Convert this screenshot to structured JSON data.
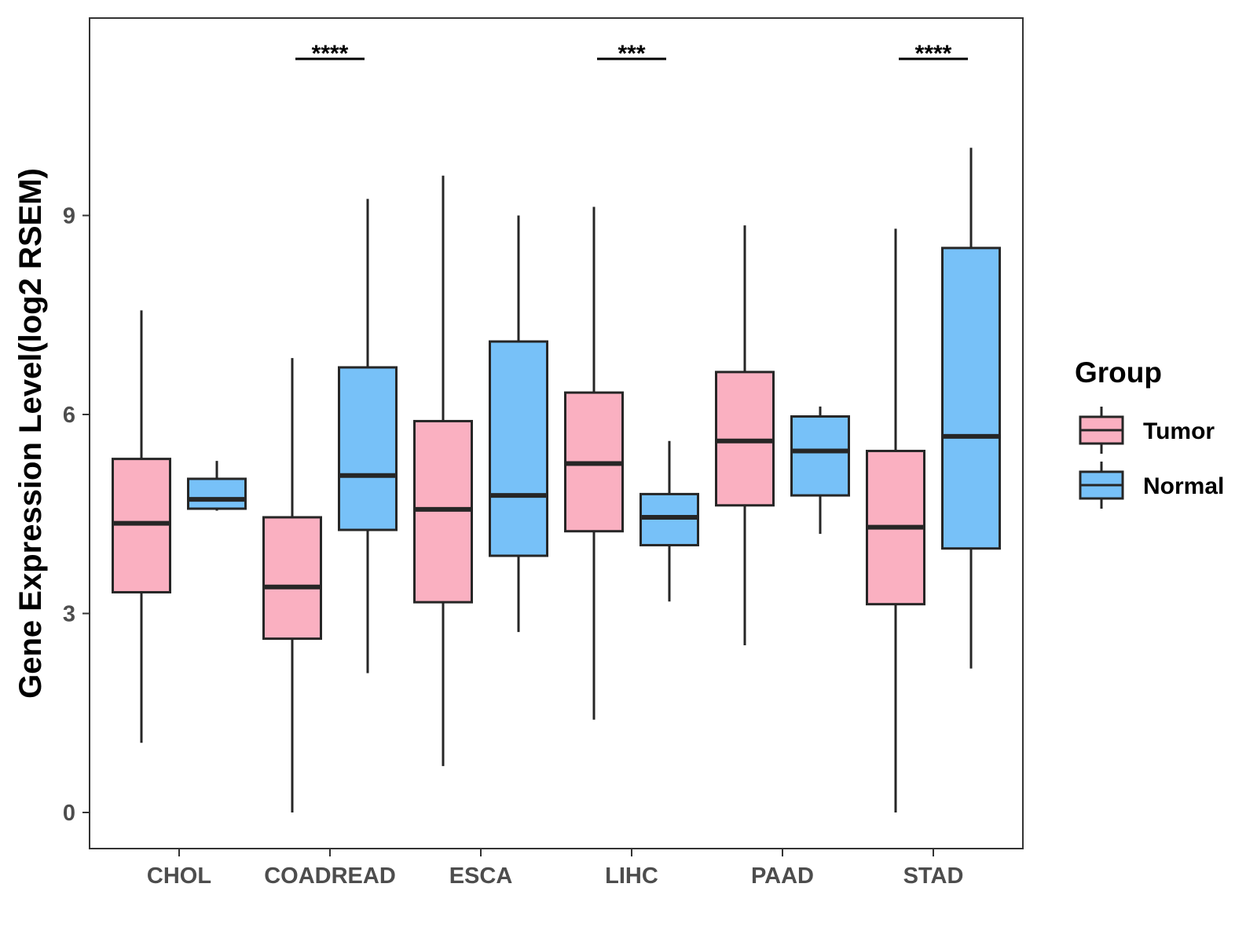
{
  "chart_data": {
    "type": "box",
    "title": "",
    "xlabel": "",
    "ylabel": "Gene Expression Level(log2 RSEM)",
    "ylim": [
      -0.55,
      12
    ],
    "yticks": [
      0,
      3,
      6,
      9
    ],
    "categories": [
      "CHOL",
      "COADREAD",
      "ESCA",
      "LIHC",
      "PAAD",
      "STAD"
    ],
    "legend_title": "Group",
    "legend_position": "right",
    "series": [
      {
        "name": "Tumor",
        "color": "#FAB0C1",
        "boxes": [
          {
            "min": 1.05,
            "q1": 3.32,
            "median": 4.36,
            "q3": 5.33,
            "max": 7.57
          },
          {
            "min": 0.0,
            "q1": 2.62,
            "median": 3.4,
            "q3": 4.45,
            "max": 6.85
          },
          {
            "min": 0.7,
            "q1": 3.17,
            "median": 4.57,
            "q3": 5.9,
            "max": 9.6
          },
          {
            "min": 1.4,
            "q1": 4.24,
            "median": 5.26,
            "q3": 6.33,
            "max": 9.13
          },
          {
            "min": 2.52,
            "q1": 4.63,
            "median": 5.6,
            "q3": 6.64,
            "max": 8.85
          },
          {
            "min": 0.0,
            "q1": 3.14,
            "median": 4.3,
            "q3": 5.45,
            "max": 8.8
          }
        ]
      },
      {
        "name": "Normal",
        "color": "#77C1F8",
        "boxes": [
          {
            "min": 4.55,
            "q1": 4.58,
            "median": 4.72,
            "q3": 5.03,
            "max": 5.3
          },
          {
            "min": 2.1,
            "q1": 4.26,
            "median": 5.08,
            "q3": 6.71,
            "max": 9.25
          },
          {
            "min": 2.72,
            "q1": 3.87,
            "median": 4.78,
            "q3": 7.1,
            "max": 9.0
          },
          {
            "min": 3.18,
            "q1": 4.03,
            "median": 4.45,
            "q3": 4.8,
            "max": 5.6
          },
          {
            "min": 4.2,
            "q1": 4.78,
            "median": 5.45,
            "q3": 5.97,
            "max": 6.12
          },
          {
            "min": 2.17,
            "q1": 3.98,
            "median": 5.67,
            "q3": 8.51,
            "max": 10.02
          }
        ]
      }
    ],
    "annotations": [
      {
        "category": "COADREAD",
        "label": "****"
      },
      {
        "category": "LIHC",
        "label": "***"
      },
      {
        "category": "STAD",
        "label": "****"
      }
    ]
  }
}
